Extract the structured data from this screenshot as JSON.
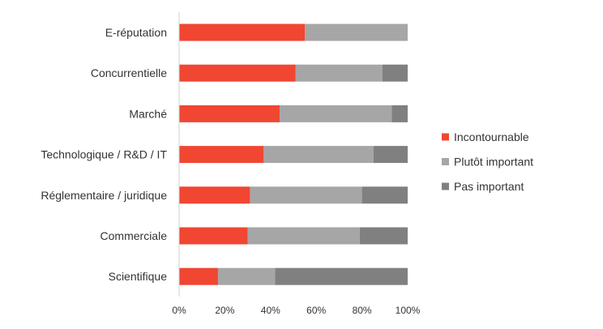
{
  "chart_data": {
    "type": "bar",
    "orientation": "horizontal",
    "stacked": "percent",
    "title": "",
    "xlabel": "",
    "ylabel": "",
    "categories": [
      "E-réputation",
      "Concurrentielle",
      "Marché",
      "Technologique / R&D / IT",
      "Réglementaire / juridique",
      "Commerciale",
      "Scientifique"
    ],
    "series": [
      {
        "name": "Incontournable",
        "color": "#f04632",
        "values": [
          55,
          51,
          44,
          37,
          31,
          30,
          17
        ]
      },
      {
        "name": "Plutôt important",
        "color": "#a6a6a6",
        "values": [
          45,
          38,
          49,
          48,
          49,
          49,
          25
        ]
      },
      {
        "name": "Pas important",
        "color": "#808080",
        "values": [
          0,
          11,
          7,
          15,
          20,
          21,
          58
        ]
      }
    ],
    "xlim": [
      0,
      100
    ],
    "ticks": [
      "0%",
      "20%",
      "40%",
      "60%",
      "80%",
      "100%"
    ],
    "tick_values": [
      0,
      20,
      40,
      60,
      80,
      100
    ],
    "grid": false,
    "legend_position": "right"
  }
}
